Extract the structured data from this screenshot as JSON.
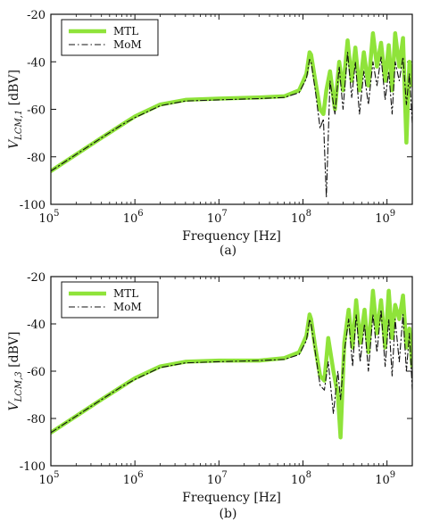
{
  "chart_data": [
    {
      "type": "line",
      "caption": "(a)",
      "xlabel": "Frequency [Hz]",
      "ylabel_main": "V",
      "ylabel_sub": "LCM,1",
      "ylabel_unit": " [dBV]",
      "x_scale": "log",
      "xlim": [
        100000,
        2000000000
      ],
      "ylim": [
        -100,
        -20
      ],
      "y_ticks": [
        -20,
        -40,
        -60,
        -80,
        -100
      ],
      "x_ticks": [
        {
          "value": 100000,
          "base": "10",
          "exp": "5"
        },
        {
          "value": 1000000,
          "base": "10",
          "exp": "6"
        },
        {
          "value": 10000000,
          "base": "10",
          "exp": "7"
        },
        {
          "value": 100000000,
          "base": "10",
          "exp": "8"
        },
        {
          "value": 1000000000,
          "base": "10",
          "exp": "9"
        }
      ],
      "legend": {
        "position": "top-left"
      },
      "series": [
        {
          "name": "MTL",
          "color": "#8fe33a",
          "style": "solid-thick",
          "x": [
            100000,
            200000,
            400000,
            700000,
            1000000,
            2000000,
            4000000,
            10000000,
            30000000,
            60000000,
            90000000,
            110000000,
            120000000,
            125000000,
            140000000,
            160000000,
            175000000,
            190000000,
            210000000,
            240000000,
            270000000,
            300000000,
            340000000,
            380000000,
            420000000,
            470000000,
            530000000,
            600000000,
            680000000,
            760000000,
            850000000,
            950000000,
            1050000000,
            1150000000,
            1250000000,
            1400000000,
            1550000000,
            1700000000,
            1850000000,
            2000000000
          ],
          "y": [
            -86,
            -79,
            -72,
            -66.5,
            -63,
            -58,
            -56,
            -55.5,
            -55,
            -54.5,
            -52,
            -45,
            -36,
            -37,
            -48,
            -60,
            -62,
            -52,
            -44,
            -60,
            -40,
            -52,
            -31,
            -48,
            -34,
            -52,
            -36,
            -50,
            -28,
            -42,
            -32,
            -48,
            -33,
            -52,
            -28,
            -42,
            -30,
            -74,
            -40,
            -50
          ]
        },
        {
          "name": "MoM",
          "color": "#111111",
          "style": "dash-dot",
          "x": [
            100000,
            200000,
            400000,
            700000,
            1000000,
            2000000,
            4000000,
            10000000,
            30000000,
            60000000,
            90000000,
            110000000,
            120000000,
            125000000,
            140000000,
            160000000,
            175000000,
            190000000,
            210000000,
            240000000,
            270000000,
            300000000,
            340000000,
            380000000,
            420000000,
            470000000,
            530000000,
            600000000,
            680000000,
            760000000,
            850000000,
            950000000,
            1050000000,
            1150000000,
            1250000000,
            1400000000,
            1550000000,
            1700000000,
            1850000000,
            2000000000
          ],
          "y": [
            -86,
            -79,
            -72,
            -66.5,
            -63.5,
            -58.5,
            -56.5,
            -56,
            -55.5,
            -55,
            -53,
            -47,
            -39,
            -40,
            -52,
            -68,
            -64,
            -97,
            -48,
            -62,
            -42,
            -60,
            -36,
            -55,
            -40,
            -62,
            -44,
            -58,
            -40,
            -50,
            -38,
            -56,
            -44,
            -62,
            -40,
            -48,
            -38,
            -58,
            -45,
            -66
          ]
        }
      ]
    },
    {
      "type": "line",
      "caption": "(b)",
      "xlabel": "Frequency [Hz]",
      "ylabel_main": "V",
      "ylabel_sub": "LCM,3",
      "ylabel_unit": " [dBV]",
      "x_scale": "log",
      "xlim": [
        100000,
        2000000000
      ],
      "ylim": [
        -100,
        -20
      ],
      "y_ticks": [
        -20,
        -40,
        -60,
        -80,
        -100
      ],
      "x_ticks": [
        {
          "value": 100000,
          "base": "10",
          "exp": "5"
        },
        {
          "value": 1000000,
          "base": "10",
          "exp": "6"
        },
        {
          "value": 10000000,
          "base": "10",
          "exp": "7"
        },
        {
          "value": 100000000,
          "base": "10",
          "exp": "8"
        },
        {
          "value": 1000000000,
          "base": "10",
          "exp": "9"
        }
      ],
      "legend": {
        "position": "top-left"
      },
      "series": [
        {
          "name": "MTL",
          "color": "#8fe33a",
          "style": "solid-thick",
          "x": [
            100000,
            200000,
            400000,
            700000,
            1000000,
            2000000,
            4000000,
            10000000,
            30000000,
            60000000,
            90000000,
            110000000,
            120000000,
            125000000,
            140000000,
            160000000,
            180000000,
            200000000,
            230000000,
            260000000,
            280000000,
            310000000,
            350000000,
            390000000,
            430000000,
            480000000,
            540000000,
            600000000,
            680000000,
            760000000,
            850000000,
            950000000,
            1050000000,
            1150000000,
            1250000000,
            1400000000,
            1550000000,
            1700000000,
            1850000000,
            2000000000
          ],
          "y": [
            -86,
            -79,
            -72,
            -66.5,
            -63,
            -58,
            -56,
            -55.5,
            -55.5,
            -54.5,
            -52,
            -45,
            -36,
            -38,
            -50,
            -62,
            -64,
            -46,
            -60,
            -70,
            -88,
            -48,
            -34,
            -50,
            -30,
            -48,
            -34,
            -52,
            -26,
            -44,
            -30,
            -50,
            -26,
            -46,
            -32,
            -38,
            -28,
            -50,
            -42,
            -58
          ]
        },
        {
          "name": "MoM",
          "color": "#111111",
          "style": "dash-dot",
          "x": [
            100000,
            200000,
            400000,
            700000,
            1000000,
            2000000,
            4000000,
            10000000,
            30000000,
            60000000,
            90000000,
            110000000,
            120000000,
            125000000,
            140000000,
            160000000,
            180000000,
            200000000,
            230000000,
            260000000,
            280000000,
            310000000,
            350000000,
            390000000,
            430000000,
            480000000,
            540000000,
            600000000,
            680000000,
            760000000,
            850000000,
            950000000,
            1050000000,
            1150000000,
            1250000000,
            1400000000,
            1550000000,
            1700000000,
            1850000000,
            2000000000
          ],
          "y": [
            -86,
            -79,
            -72,
            -66.5,
            -63.5,
            -58.5,
            -56.5,
            -56,
            -55.5,
            -55,
            -53,
            -47,
            -38,
            -40,
            -52,
            -66,
            -68,
            -56,
            -78,
            -60,
            -72,
            -52,
            -38,
            -58,
            -36,
            -56,
            -40,
            -60,
            -36,
            -52,
            -34,
            -58,
            -38,
            -62,
            -38,
            -56,
            -36,
            -60,
            -44,
            -68
          ]
        }
      ]
    }
  ]
}
